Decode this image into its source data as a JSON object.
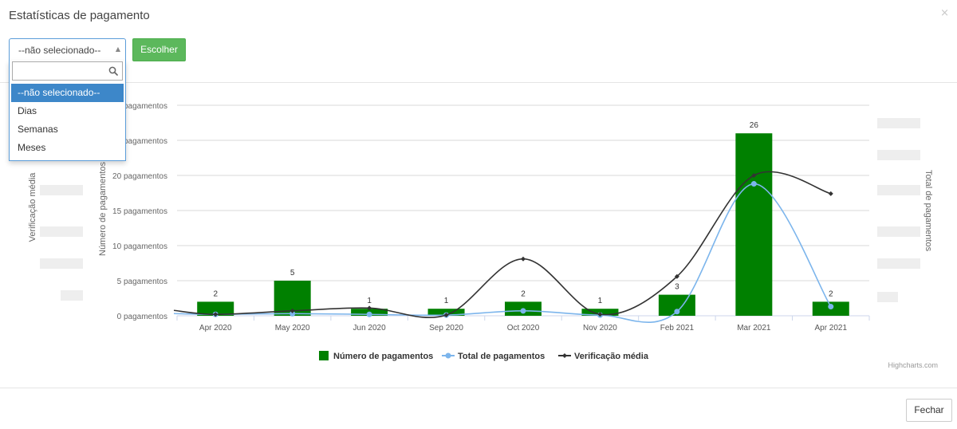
{
  "modal": {
    "title": "Estatísticas de pagamento",
    "close_glyph": "×",
    "close_button": "Fechar"
  },
  "toolbar": {
    "select_value": "--não selecionado--",
    "select_arrow": "▲",
    "search_placeholder": "",
    "options": [
      "--não selecionado--",
      "Dias",
      "Semanas",
      "Meses"
    ],
    "selected_index": 0,
    "choose_button": "Escolher"
  },
  "icons": {
    "search": "search-icon",
    "close": "close-icon",
    "dropdown_arrow": "chevron-up-icon"
  },
  "chart_data": {
    "type": "bar",
    "title": "",
    "categories": [
      "Apr 2020",
      "May 2020",
      "Jun 2020",
      "Sep 2020",
      "Oct 2020",
      "Nov 2020",
      "Feb 2021",
      "Mar 2021",
      "Apr 2021"
    ],
    "y_axis_left_label": "Número de pagamentos",
    "y_axis_left_ticks": [
      "0 pagamentos",
      "5 pagamentos",
      "10 pagamentos",
      "15 pagamentos",
      "20 pagamentos",
      "pagamentos",
      "pagamentos"
    ],
    "y_axis_left_range": [
      0,
      30
    ],
    "y_axis_right_label": "Total de pagamentos",
    "y_axis_far_left_label": "Verificação média",
    "partial_label": "...",
    "series": [
      {
        "name": "Número de pagamentos",
        "type": "column",
        "color": "#008000",
        "values": [
          2,
          5,
          1,
          1,
          2,
          1,
          3,
          26,
          2
        ],
        "data_labels": [
          "2",
          "5",
          "1",
          "1",
          "2",
          "1",
          "3",
          "26",
          "2"
        ]
      },
      {
        "name": "Total de pagamentos",
        "type": "spline",
        "color": "#7cb5ec",
        "values": [
          0.2,
          0.3,
          0.2,
          0.1,
          0.7,
          0.1,
          0.6,
          18.8,
          1.3
        ]
      },
      {
        "name": "Verificação média",
        "type": "spline",
        "color": "#333333",
        "values": [
          0.2,
          0.7,
          1.1,
          0.1,
          8.1,
          0.2,
          5.6,
          20,
          17.4
        ]
      }
    ],
    "grid": true,
    "legend_position": "bottom-center",
    "credits": "Highcharts.com"
  }
}
